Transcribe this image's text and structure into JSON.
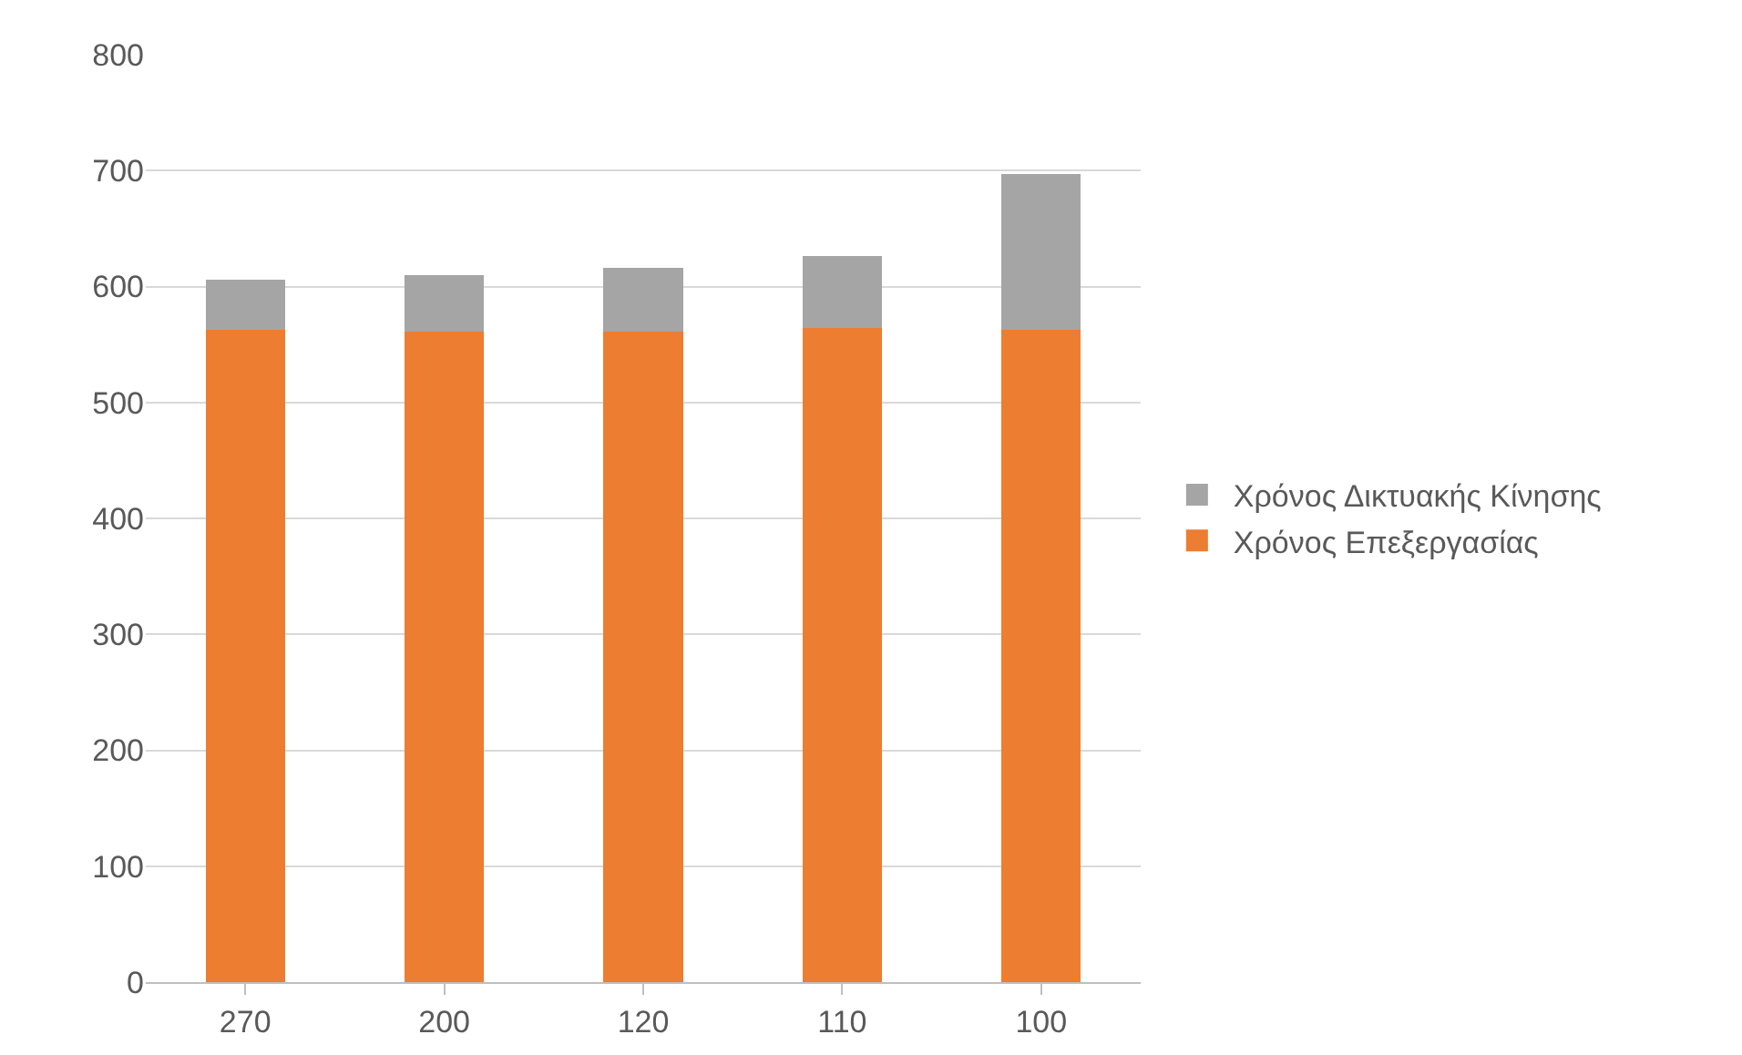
{
  "chart_data": {
    "type": "bar",
    "stacked": true,
    "categories": [
      "270",
      "200",
      "120",
      "110",
      "100"
    ],
    "series": [
      {
        "name": "Χρόνος Επεξεργασίας",
        "color": "#ed7d31",
        "values": [
          563,
          561,
          561,
          564,
          563
        ]
      },
      {
        "name": "Χρόνος Δικτυακής Κίνησης",
        "color": "#a5a5a5",
        "values": [
          43,
          49,
          55,
          62,
          134
        ]
      }
    ],
    "ylim": [
      0,
      800
    ],
    "yticks": [
      0,
      100,
      200,
      300,
      400,
      500,
      600,
      700,
      800
    ],
    "grid": "y",
    "legend": "right"
  }
}
